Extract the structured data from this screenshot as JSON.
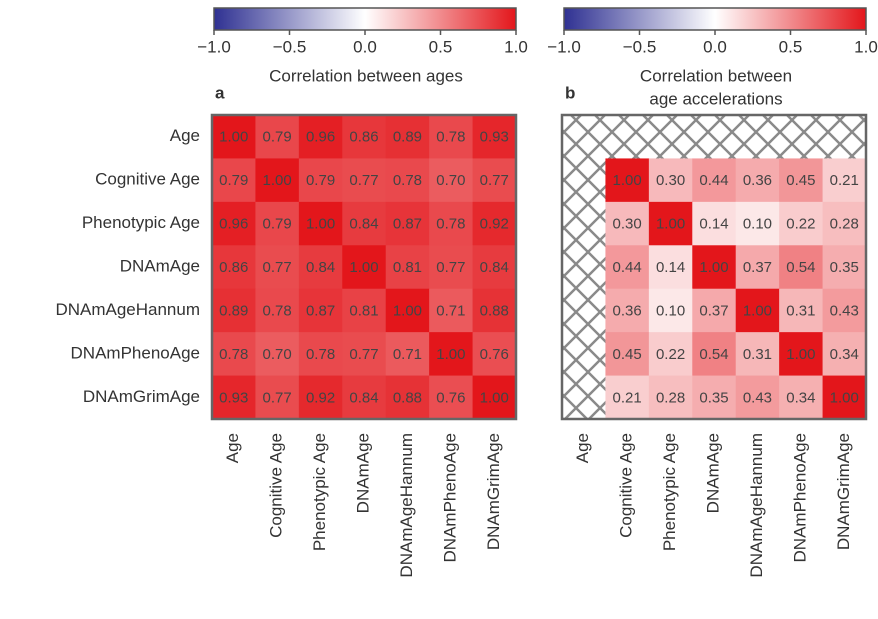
{
  "chart_data": [
    {
      "type": "heatmap",
      "panel": "a",
      "colorbar_label": [
        "Correlation between ages"
      ],
      "clim": [
        -1,
        1
      ],
      "colormap": [
        "#2f3192",
        "#ffffff",
        "#e3161b"
      ],
      "cticks": [
        {
          "value": -1,
          "label": "−1.0"
        },
        {
          "value": -0.5,
          "label": "−0.5"
        },
        {
          "value": 0,
          "label": "0.0"
        },
        {
          "value": 0.5,
          "label": "0.5"
        },
        {
          "value": 1,
          "label": "1.0"
        }
      ],
      "rows": [
        "Age",
        "Cognitive Age",
        "Phenotypic Age",
        "DNAmAge",
        "DNAmAgeHannum",
        "DNAmPhenoAge",
        "DNAmGrimAge"
      ],
      "columns": [
        "Age",
        "Cognitive Age",
        "Phenotypic Age",
        "DNAmAge",
        "DNAmAgeHannum",
        "DNAmPhenoAge",
        "DNAmGrimAge"
      ],
      "values": [
        [
          1,
          0.79,
          0.96,
          0.86,
          0.89,
          0.78,
          0.93
        ],
        [
          0.79,
          1,
          0.79,
          0.77,
          0.78,
          0.7,
          0.77
        ],
        [
          0.96,
          0.79,
          1,
          0.84,
          0.87,
          0.78,
          0.92
        ],
        [
          0.86,
          0.77,
          0.84,
          1,
          0.81,
          0.77,
          0.84
        ],
        [
          0.89,
          0.78,
          0.87,
          0.81,
          1,
          0.71,
          0.88
        ],
        [
          0.78,
          0.7,
          0.78,
          0.77,
          0.71,
          1,
          0.76
        ],
        [
          0.93,
          0.77,
          0.92,
          0.84,
          0.88,
          0.76,
          1
        ]
      ],
      "value_labels": [
        [
          "1.00",
          "0.79",
          "0.96",
          "0.86",
          "0.89",
          "0.78",
          "0.93"
        ],
        [
          "0.79",
          "1.00",
          "0.79",
          "0.77",
          "0.78",
          "0.70",
          "0.77"
        ],
        [
          "0.96",
          "0.79",
          "1.00",
          "0.84",
          "0.87",
          "0.78",
          "0.92"
        ],
        [
          "0.86",
          "0.77",
          "0.84",
          "1.00",
          "0.81",
          "0.77",
          "0.84"
        ],
        [
          "0.89",
          "0.78",
          "0.87",
          "0.81",
          "1.00",
          "0.71",
          "0.88"
        ],
        [
          "0.78",
          "0.70",
          "0.78",
          "0.77",
          "0.71",
          "1.00",
          "0.76"
        ],
        [
          "0.93",
          "0.77",
          "0.92",
          "0.84",
          "0.88",
          "0.76",
          "1.00"
        ]
      ]
    },
    {
      "type": "heatmap",
      "panel": "b",
      "colorbar_label": [
        "Correlation between",
        "age accelerations"
      ],
      "clim": [
        -1,
        1
      ],
      "colormap": [
        "#2f3192",
        "#ffffff",
        "#e3161b"
      ],
      "cticks": [
        {
          "value": -1,
          "label": "−1.0"
        },
        {
          "value": -0.5,
          "label": "−0.5"
        },
        {
          "value": 0,
          "label": "0.0"
        },
        {
          "value": 0.5,
          "label": "0.5"
        },
        {
          "value": 1,
          "label": "1.0"
        }
      ],
      "columns": [
        "Age",
        "Cognitive Age",
        "Phenotypic Age",
        "DNAmAge",
        "DNAmAgeHannum",
        "DNAmPhenoAge",
        "DNAmGrimAge"
      ],
      "values": [
        [
          null,
          null,
          null,
          null,
          null,
          null,
          null
        ],
        [
          null,
          1,
          0.3,
          0.44,
          0.36,
          0.45,
          0.21
        ],
        [
          null,
          0.3,
          1,
          0.14,
          0.1,
          0.22,
          0.28
        ],
        [
          null,
          0.44,
          0.14,
          1,
          0.37,
          0.54,
          0.35
        ],
        [
          null,
          0.36,
          0.1,
          0.37,
          1,
          0.31,
          0.43
        ],
        [
          null,
          0.45,
          0.22,
          0.54,
          0.31,
          1,
          0.34
        ],
        [
          null,
          0.21,
          0.28,
          0.35,
          0.43,
          0.34,
          1
        ]
      ],
      "value_labels": [
        [
          null,
          null,
          null,
          null,
          null,
          null,
          null
        ],
        [
          null,
          "1.00",
          "0.30",
          "0.44",
          "0.36",
          "0.45",
          "0.21"
        ],
        [
          null,
          "0.30",
          "1.00",
          "0.14",
          "0.10",
          "0.22",
          "0.28"
        ],
        [
          null,
          "0.44",
          "0.14",
          "1.00",
          "0.37",
          "0.54",
          "0.35"
        ],
        [
          null,
          "0.36",
          "0.10",
          "0.37",
          "1.00",
          "0.31",
          "0.43"
        ],
        [
          null,
          "0.45",
          "0.22",
          "0.54",
          "0.31",
          "1.00",
          "0.34"
        ],
        [
          null,
          "0.21",
          "0.28",
          "0.35",
          "0.43",
          "0.34",
          "1.00"
        ]
      ]
    }
  ]
}
